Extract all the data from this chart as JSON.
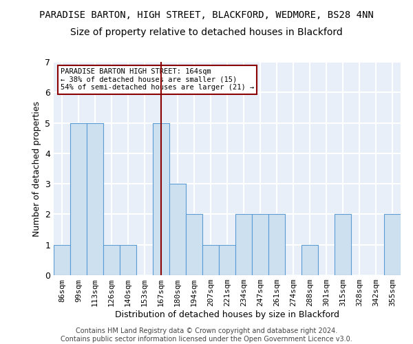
{
  "title1": "PARADISE BARTON, HIGH STREET, BLACKFORD, WEDMORE, BS28 4NN",
  "title2": "Size of property relative to detached houses in Blackford",
  "xlabel": "Distribution of detached houses by size in Blackford",
  "ylabel": "Number of detached properties",
  "bar_labels": [
    "86sqm",
    "99sqm",
    "113sqm",
    "126sqm",
    "140sqm",
    "153sqm",
    "167sqm",
    "180sqm",
    "194sqm",
    "207sqm",
    "221sqm",
    "234sqm",
    "247sqm",
    "261sqm",
    "274sqm",
    "288sqm",
    "301sqm",
    "315sqm",
    "328sqm",
    "342sqm",
    "355sqm"
  ],
  "bar_heights": [
    1,
    5,
    5,
    1,
    1,
    0,
    5,
    3,
    2,
    1,
    1,
    2,
    2,
    2,
    0,
    1,
    0,
    2,
    0,
    0,
    2
  ],
  "bar_color": "#cce0f0",
  "bar_edgecolor": "#5b9bd5",
  "property_line_index": 6,
  "property_line_color": "#8b0000",
  "annotation_text": "PARADISE BARTON HIGH STREET: 164sqm\n← 38% of detached houses are smaller (15)\n54% of semi-detached houses are larger (21) →",
  "annotation_box_edgecolor": "#8b0000",
  "ylim": [
    0,
    7
  ],
  "yticks": [
    0,
    1,
    2,
    3,
    4,
    5,
    6,
    7
  ],
  "footer_line1": "Contains HM Land Registry data © Crown copyright and database right 2024.",
  "footer_line2": "Contains public sector information licensed under the Open Government Licence v3.0.",
  "background_color": "#e8eff8",
  "grid_color": "#ffffff",
  "title_fontsize": 10,
  "subtitle_fontsize": 10,
  "axis_label_fontsize": 9,
  "tick_fontsize": 8,
  "footer_fontsize": 7
}
